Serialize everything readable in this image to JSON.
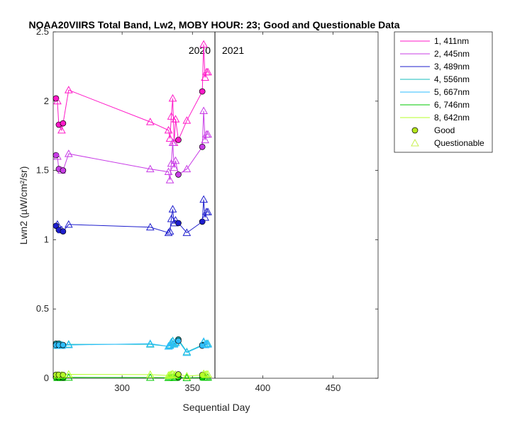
{
  "chart_data": {
    "type": "line",
    "title": "NOAA20VIIRS Total Band, Lw2, MOBY HOUR: 23;  Good and Questionable Data",
    "xlabel": "Sequential Day",
    "ylabel": "Lwn2 (µW/cm²/sr)",
    "xlim": [
      251,
      482
    ],
    "ylim": [
      0,
      2.5
    ],
    "xticks": [
      300,
      350,
      400,
      450
    ],
    "yticks": [
      0,
      0.5,
      1,
      1.5,
      2,
      2.5
    ],
    "ytick_labels": [
      "0",
      "0.5",
      "1",
      "1.5",
      "2",
      "2.5"
    ],
    "grid": false,
    "legend_position": "outside-top-right",
    "year_divider": {
      "x": 366,
      "left_label": "2020",
      "right_label": "2021"
    },
    "markers": {
      "good": "Good",
      "questionable": "Questionable",
      "good_fill": "#b5e61d",
      "questionable_edge": "#c8f050"
    },
    "series": [
      {
        "name": "1, 411nm",
        "color": "#ff19c8",
        "x": [
          253,
          254,
          255,
          257,
          258,
          262,
          320,
          333,
          334,
          335,
          336,
          337,
          338,
          340,
          346,
          357,
          358,
          359,
          360,
          361
        ],
        "y": [
          2.02,
          2.0,
          1.83,
          1.79,
          1.84,
          2.08,
          1.85,
          1.79,
          1.73,
          1.89,
          2.02,
          1.7,
          1.87,
          1.72,
          1.86,
          2.07,
          2.41,
          2.17,
          2.21,
          2.21
        ],
        "quality": [
          "g",
          "q",
          "g",
          "q",
          "g",
          "q",
          "q",
          "q",
          "q",
          "q",
          "q",
          "q",
          "q",
          "g",
          "q",
          "g",
          "q",
          "q",
          "q",
          "q"
        ]
      },
      {
        "name": "2, 445nm",
        "color": "#c83ce6",
        "x": [
          253,
          254,
          255,
          257,
          258,
          262,
          320,
          333,
          334,
          335,
          336,
          337,
          338,
          340,
          346,
          357,
          358,
          359,
          360,
          361
        ],
        "y": [
          1.61,
          1.6,
          1.51,
          1.5,
          1.5,
          1.62,
          1.51,
          1.49,
          1.43,
          1.55,
          1.7,
          1.52,
          1.57,
          1.47,
          1.51,
          1.67,
          1.93,
          1.72,
          1.76,
          1.76
        ],
        "quality": [
          "g",
          "q",
          "g",
          "q",
          "g",
          "q",
          "q",
          "q",
          "q",
          "q",
          "q",
          "q",
          "q",
          "g",
          "q",
          "g",
          "q",
          "q",
          "q",
          "q"
        ]
      },
      {
        "name": "3, 489nm",
        "color": "#1e1ecd",
        "x": [
          253,
          254,
          255,
          257,
          258,
          262,
          320,
          333,
          334,
          335,
          336,
          337,
          338,
          340,
          346,
          357,
          358,
          359,
          360,
          361
        ],
        "y": [
          1.1,
          1.11,
          1.07,
          1.07,
          1.06,
          1.11,
          1.09,
          1.05,
          1.06,
          1.15,
          1.22,
          1.12,
          1.14,
          1.12,
          1.05,
          1.13,
          1.29,
          1.16,
          1.2,
          1.2
        ],
        "quality": [
          "g",
          "q",
          "g",
          "q",
          "g",
          "q",
          "q",
          "q",
          "q",
          "q",
          "q",
          "q",
          "q",
          "g",
          "q",
          "g",
          "q",
          "q",
          "q",
          "q"
        ]
      },
      {
        "name": "4, 556nm",
        "color": "#14bebe",
        "x": [
          253,
          254,
          255,
          257,
          258,
          262,
          320,
          333,
          334,
          335,
          336,
          337,
          338,
          340,
          346,
          357,
          358,
          359,
          360,
          361
        ],
        "y": [
          0.25,
          0.24,
          0.25,
          0.24,
          0.24,
          0.245,
          0.245,
          0.23,
          0.24,
          0.26,
          0.27,
          0.25,
          0.26,
          0.28,
          0.19,
          0.24,
          0.26,
          0.24,
          0.25,
          0.25
        ],
        "quality": [
          "g",
          "q",
          "g",
          "q",
          "g",
          "q",
          "q",
          "q",
          "q",
          "q",
          "q",
          "q",
          "q",
          "g",
          "q",
          "g",
          "q",
          "q",
          "q",
          "q"
        ]
      },
      {
        "name": "5, 667nm",
        "color": "#2ebeff",
        "x": [
          253,
          254,
          255,
          257,
          258,
          262,
          320,
          333,
          334,
          335,
          336,
          337,
          338,
          340,
          346,
          357,
          358,
          359,
          360,
          361
        ],
        "y": [
          0.24,
          0.235,
          0.24,
          0.235,
          0.24,
          0.24,
          0.25,
          0.23,
          0.235,
          0.255,
          0.265,
          0.245,
          0.255,
          0.27,
          0.185,
          0.235,
          0.265,
          0.24,
          0.245,
          0.245
        ],
        "quality": [
          "g",
          "q",
          "g",
          "q",
          "g",
          "q",
          "q",
          "q",
          "q",
          "q",
          "q",
          "q",
          "q",
          "g",
          "q",
          "g",
          "q",
          "q",
          "q",
          "q"
        ]
      },
      {
        "name": "6, 746nm",
        "color": "#00c800",
        "x": [
          253,
          254,
          255,
          257,
          258,
          262,
          320,
          333,
          334,
          335,
          336,
          337,
          338,
          340,
          346,
          357,
          358,
          359,
          360,
          361
        ],
        "y": [
          0.005,
          0.004,
          0.005,
          0.004,
          0.005,
          0.006,
          0.005,
          0.004,
          0.005,
          0.005,
          0.006,
          0.004,
          0.005,
          0.006,
          0.003,
          0.005,
          0.007,
          0.005,
          0.006,
          0.006
        ],
        "quality": [
          "g",
          "q",
          "g",
          "q",
          "g",
          "q",
          "q",
          "q",
          "q",
          "q",
          "q",
          "q",
          "q",
          "g",
          "q",
          "g",
          "q",
          "q",
          "q",
          "q"
        ]
      },
      {
        "name": "8, 642nm",
        "color": "#b4ff28",
        "x": [
          253,
          254,
          255,
          257,
          258,
          262,
          320,
          333,
          334,
          335,
          336,
          337,
          338,
          340,
          346,
          357,
          358,
          359,
          360,
          361
        ],
        "y": [
          0.025,
          0.022,
          0.025,
          0.022,
          0.024,
          0.028,
          0.026,
          0.02,
          0.023,
          0.027,
          0.03,
          0.022,
          0.026,
          0.028,
          0.015,
          0.024,
          0.032,
          0.025,
          0.028,
          0.028
        ],
        "quality": [
          "g",
          "q",
          "g",
          "q",
          "g",
          "q",
          "q",
          "q",
          "q",
          "q",
          "q",
          "q",
          "q",
          "g",
          "q",
          "g",
          "q",
          "q",
          "q",
          "q"
        ]
      }
    ]
  }
}
